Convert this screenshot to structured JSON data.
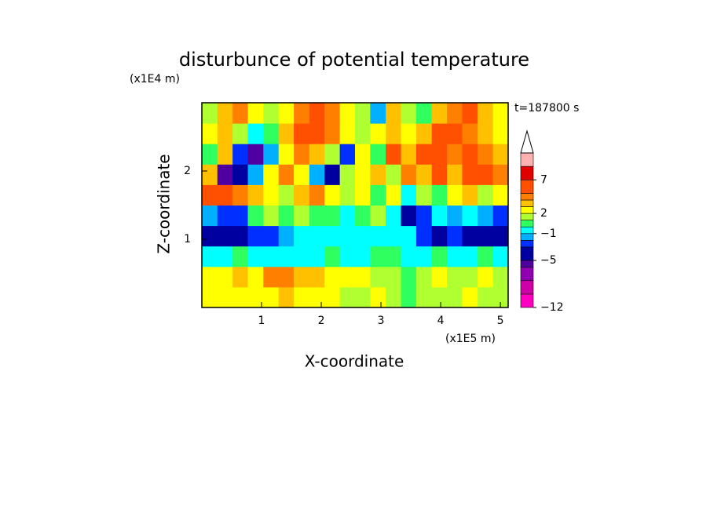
{
  "chart_data": {
    "type": "contour",
    "title": "disturbunce of potential temperature",
    "x_label": "X-coordinate",
    "y_label": "Z-coordinate",
    "x_unit": "(x1E5 m)",
    "y_unit": "(x1E4 m)",
    "annotation": "t=187800 s",
    "xlim": [
      0,
      5.13
    ],
    "ylim": [
      0,
      3
    ],
    "xticks": [
      1,
      2,
      3,
      4,
      5
    ],
    "yticks": [
      1,
      2
    ],
    "x": [
      0.13,
      0.39,
      0.64,
      0.9,
      1.16,
      1.41,
      1.67,
      1.93,
      2.18,
      2.44,
      2.69,
      2.95,
      3.21,
      3.46,
      3.72,
      3.98,
      4.23,
      4.49,
      4.75,
      5.0
    ],
    "y": [
      0.15,
      0.45,
      0.75,
      1.05,
      1.35,
      1.65,
      1.95,
      2.25,
      2.55,
      2.85
    ],
    "z": [
      [
        2,
        2,
        2,
        2,
        2,
        3,
        2,
        2,
        2,
        1,
        1,
        2,
        1,
        0,
        1,
        1,
        1,
        2,
        1,
        1
      ],
      [
        2,
        2,
        3,
        2,
        4,
        4,
        3,
        3,
        2,
        2,
        2,
        1,
        1,
        0,
        1,
        2,
        1,
        1,
        2,
        1
      ],
      [
        -1,
        -1,
        0,
        -1,
        -1,
        -1,
        -1,
        -1,
        0,
        -1,
        -1,
        0,
        0,
        -1,
        -1,
        0,
        -1,
        -1,
        0,
        -1
      ],
      [
        -4,
        -5,
        -4,
        -3,
        -3,
        -2,
        -1,
        -1,
        -1,
        -1,
        -1,
        -1,
        -1,
        -1,
        -3,
        -4,
        -3,
        -4,
        -5,
        -4
      ],
      [
        -2,
        -3,
        -3,
        0,
        1,
        0,
        1,
        0,
        0,
        -1,
        0,
        1,
        -1,
        -4,
        -3,
        -1,
        -2,
        -1,
        -2,
        -3
      ],
      [
        5,
        6,
        4,
        3,
        2,
        1,
        3,
        4,
        2,
        1,
        2,
        0,
        2,
        -1,
        1,
        0,
        2,
        3,
        1,
        2
      ],
      [
        3,
        -6,
        -4,
        -2,
        2,
        4,
        2,
        -2,
        -4,
        1,
        2,
        3,
        1,
        4,
        3,
        5,
        3,
        5,
        5,
        4
      ],
      [
        0,
        3,
        -3,
        -6,
        -2,
        2,
        4,
        3,
        1,
        -3,
        2,
        0,
        5,
        3,
        5,
        6,
        4,
        5,
        4,
        3
      ],
      [
        2,
        3,
        1,
        -1,
        0,
        3,
        5,
        5,
        4,
        2,
        1,
        2,
        3,
        2,
        3,
        5,
        5,
        4,
        3,
        2
      ],
      [
        1,
        3,
        4,
        2,
        1,
        2,
        4,
        5,
        4,
        2,
        1,
        -2,
        3,
        1,
        0,
        3,
        4,
        5,
        3,
        2
      ]
    ],
    "levels": [
      -12,
      -10,
      -8,
      -6,
      -5,
      -3,
      -2,
      -1,
      0,
      1,
      2,
      3,
      4,
      5,
      7,
      9,
      11
    ],
    "colors": [
      "#ff00c0",
      "#d000a8",
      "#9000b0",
      "#5000a0",
      "#0000a0",
      "#0030ff",
      "#00b0ff",
      "#00ffff",
      "#30ff60",
      "#b0ff30",
      "#ffff00",
      "#ffc000",
      "#ff8000",
      "#ff5000",
      "#e00000",
      "#ffb0b0"
    ],
    "extend": "max",
    "colorbar_ticks": [
      {
        "value": -12,
        "label": "−12"
      },
      {
        "value": -5,
        "label": "−5"
      },
      {
        "value": -1,
        "label": "−1"
      },
      2,
      7
    ]
  }
}
